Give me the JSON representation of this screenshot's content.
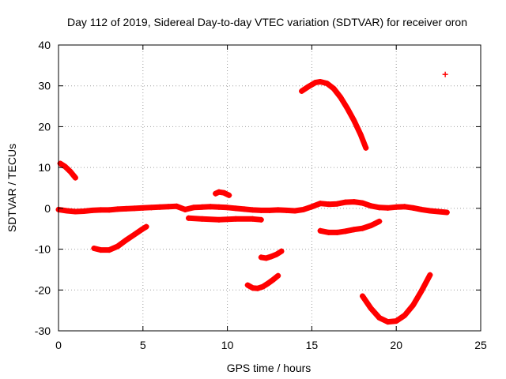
{
  "chart_data": {
    "type": "scatter",
    "title": "Day 112 of 2019, Sidereal Day-to-day VTEC variation (SDTVAR) for receiver oron",
    "xlabel": "GPS time / hours",
    "ylabel": "SDTVAR / TECUs",
    "xlim": [
      0,
      25
    ],
    "ylim": [
      -30,
      40
    ],
    "xticks": [
      0,
      5,
      10,
      15,
      20,
      25
    ],
    "yticks": [
      -30,
      -20,
      -10,
      0,
      10,
      20,
      30,
      40
    ],
    "grid": true,
    "marker": "+",
    "color": "#ff0000",
    "series": [
      {
        "x": [
          0,
          0.5,
          1,
          1.5,
          2,
          2.5,
          3,
          3.5,
          4,
          4.5,
          5,
          5.5,
          6,
          6.5,
          7,
          7.5
        ],
        "y": [
          -0.3,
          -0.6,
          -0.8,
          -0.7,
          -0.5,
          -0.4,
          -0.4,
          -0.2,
          -0.1,
          0,
          0.1,
          0.2,
          0.3,
          0.4,
          0.5,
          -0.3
        ]
      },
      {
        "x": [
          7.5,
          8,
          8.5,
          9,
          9.5,
          10,
          10.5,
          11,
          11.5,
          12,
          12.5,
          13,
          13.5,
          14,
          14.5,
          15,
          15.5,
          16,
          16.5,
          17,
          17.5,
          18,
          18.5,
          19,
          19.5,
          20,
          20.5,
          21,
          21.5,
          22,
          22.5,
          23
        ],
        "y": [
          -0.3,
          0.2,
          0.3,
          0.4,
          0.3,
          0.2,
          0,
          -0.2,
          -0.4,
          -0.5,
          -0.5,
          -0.4,
          -0.5,
          -0.6,
          -0.3,
          0.4,
          1.2,
          1.0,
          1.1,
          1.5,
          1.6,
          1.3,
          0.6,
          0.2,
          0.1,
          0.3,
          0.4,
          0.1,
          -0.3,
          -0.6,
          -0.8,
          -1.0
        ]
      },
      {
        "x": [
          0.1,
          0.4,
          0.7,
          1.0
        ],
        "y": [
          11,
          10.2,
          9,
          7.5
        ]
      },
      {
        "x": [
          2.1,
          2.5,
          3.0,
          3.5,
          4.0,
          4.5,
          5.0,
          5.2
        ],
        "y": [
          -9.8,
          -10.2,
          -10.2,
          -9.3,
          -7.8,
          -6.4,
          -5.0,
          -4.5
        ]
      },
      {
        "x": [
          7.7,
          8.5,
          9.5,
          10.5,
          11.5,
          12.0
        ],
        "y": [
          -2.4,
          -2.6,
          -2.8,
          -2.6,
          -2.6,
          -2.8
        ]
      },
      {
        "x": [
          9.3,
          9.5,
          9.8,
          10.1
        ],
        "y": [
          3.6,
          4.0,
          3.8,
          3.2
        ]
      },
      {
        "x": [
          11.2,
          11.5,
          11.8,
          12.1,
          12.4,
          12.7,
          13.0
        ],
        "y": [
          -18.8,
          -19.5,
          -19.6,
          -19.2,
          -18.4,
          -17.5,
          -16.5
        ]
      },
      {
        "x": [
          12.0,
          12.3,
          12.6,
          12.9,
          13.2
        ],
        "y": [
          -12.0,
          -12.2,
          -11.8,
          -11.3,
          -10.5
        ]
      },
      {
        "x": [
          14.4,
          14.8,
          15.2,
          15.5,
          15.9,
          16.3,
          16.7,
          17.1,
          17.5,
          17.9,
          18.2
        ],
        "y": [
          28.7,
          29.8,
          30.8,
          31.0,
          30.6,
          29.3,
          27.2,
          24.5,
          21.5,
          18.0,
          14.8
        ]
      },
      {
        "x": [
          15.5,
          16.0,
          16.5,
          17.0,
          17.5,
          18.0,
          18.5,
          19.0
        ],
        "y": [
          -5.5,
          -5.9,
          -5.9,
          -5.6,
          -5.2,
          -4.9,
          -4.2,
          -3.2
        ]
      },
      {
        "x": [
          18.0,
          18.5,
          19.0,
          19.5,
          20.0,
          20.5,
          21.0,
          21.5,
          22.0
        ],
        "y": [
          -21.5,
          -24.5,
          -26.8,
          -27.8,
          -27.6,
          -26.2,
          -23.7,
          -20.2,
          -16.3
        ]
      },
      {
        "x": [
          22.9
        ],
        "y": [
          32.8
        ]
      }
    ]
  }
}
